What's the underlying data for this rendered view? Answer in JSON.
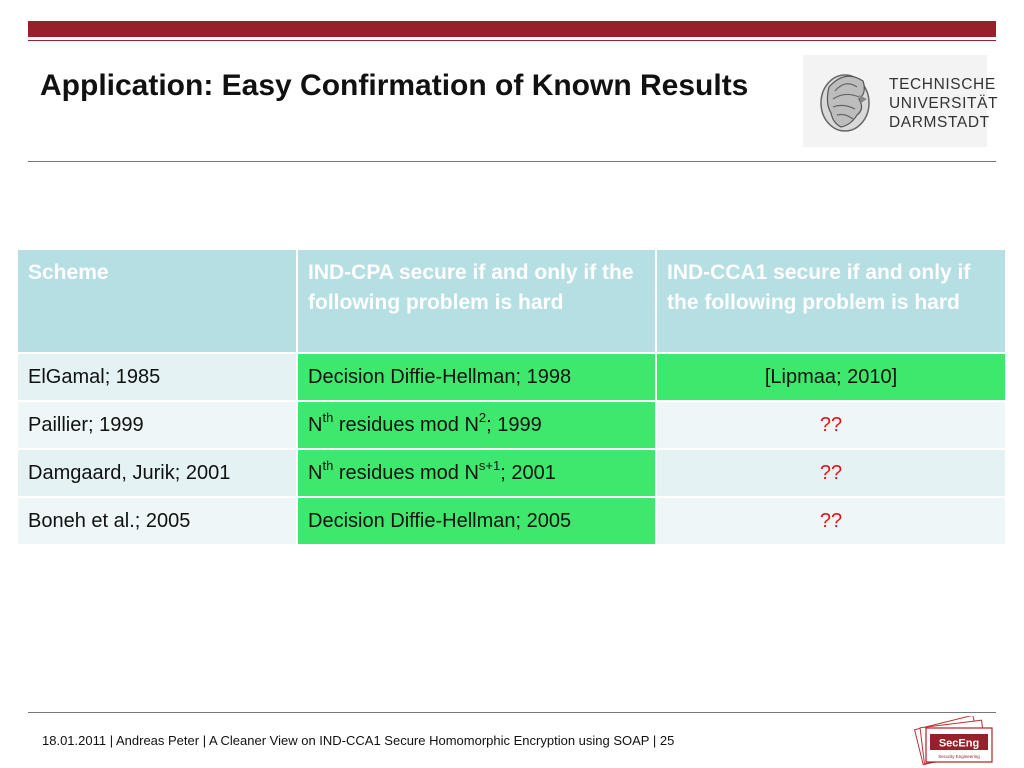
{
  "slide": {
    "title": "Application: Easy Confirmation of Known Results"
  },
  "logo": {
    "line1": "TECHNISCHE",
    "line2": "UNIVERSITÄT",
    "line3": "DARMSTADT"
  },
  "table": {
    "headers": [
      "Scheme",
      "IND-CPA secure if and only if the following problem is hard",
      "IND-CCA1 secure if and only if the following problem is hard"
    ],
    "rows": [
      {
        "scheme": "ElGamal; 1985",
        "cpa_pre": "Decision Diffie-Hellman; 1998",
        "cpa_sup": "",
        "cpa_mid": "",
        "cpa_sup2": "",
        "cpa_post": "",
        "cca": "[Lipmaa; 2010]"
      },
      {
        "scheme": "Paillier; 1999",
        "cpa_pre": "N",
        "cpa_sup": "th",
        "cpa_mid": " residues mod N",
        "cpa_sup2": "2",
        "cpa_post": ";  1999",
        "cca": "??"
      },
      {
        "scheme": "Damgaard, Jurik; 2001",
        "cpa_pre": "N",
        "cpa_sup": "th",
        "cpa_mid": " residues mod N",
        "cpa_sup2": "s+1",
        "cpa_post": "; 2001",
        "cca": "??"
      },
      {
        "scheme": "Boneh et al.; 2005",
        "cpa_pre": "Decision Diffie-Hellman; 2005",
        "cpa_sup": "",
        "cpa_mid": "",
        "cpa_sup2": "",
        "cpa_post": "",
        "cca": "??"
      }
    ]
  },
  "footer": {
    "text": "18.01.2011  |  Andreas Peter  |  A Cleaner View on IND-CCA1 Secure Homomorphic Encryption using SOAP  |  25"
  },
  "footer_logo": {
    "text": "SecEng",
    "subtext": "Security Engineering"
  },
  "colors": {
    "accent_bar": "#98202a",
    "header_bg": "#b6dfe3",
    "highlight_green": "#3ee86d",
    "unknown_red": "#e0151a"
  }
}
